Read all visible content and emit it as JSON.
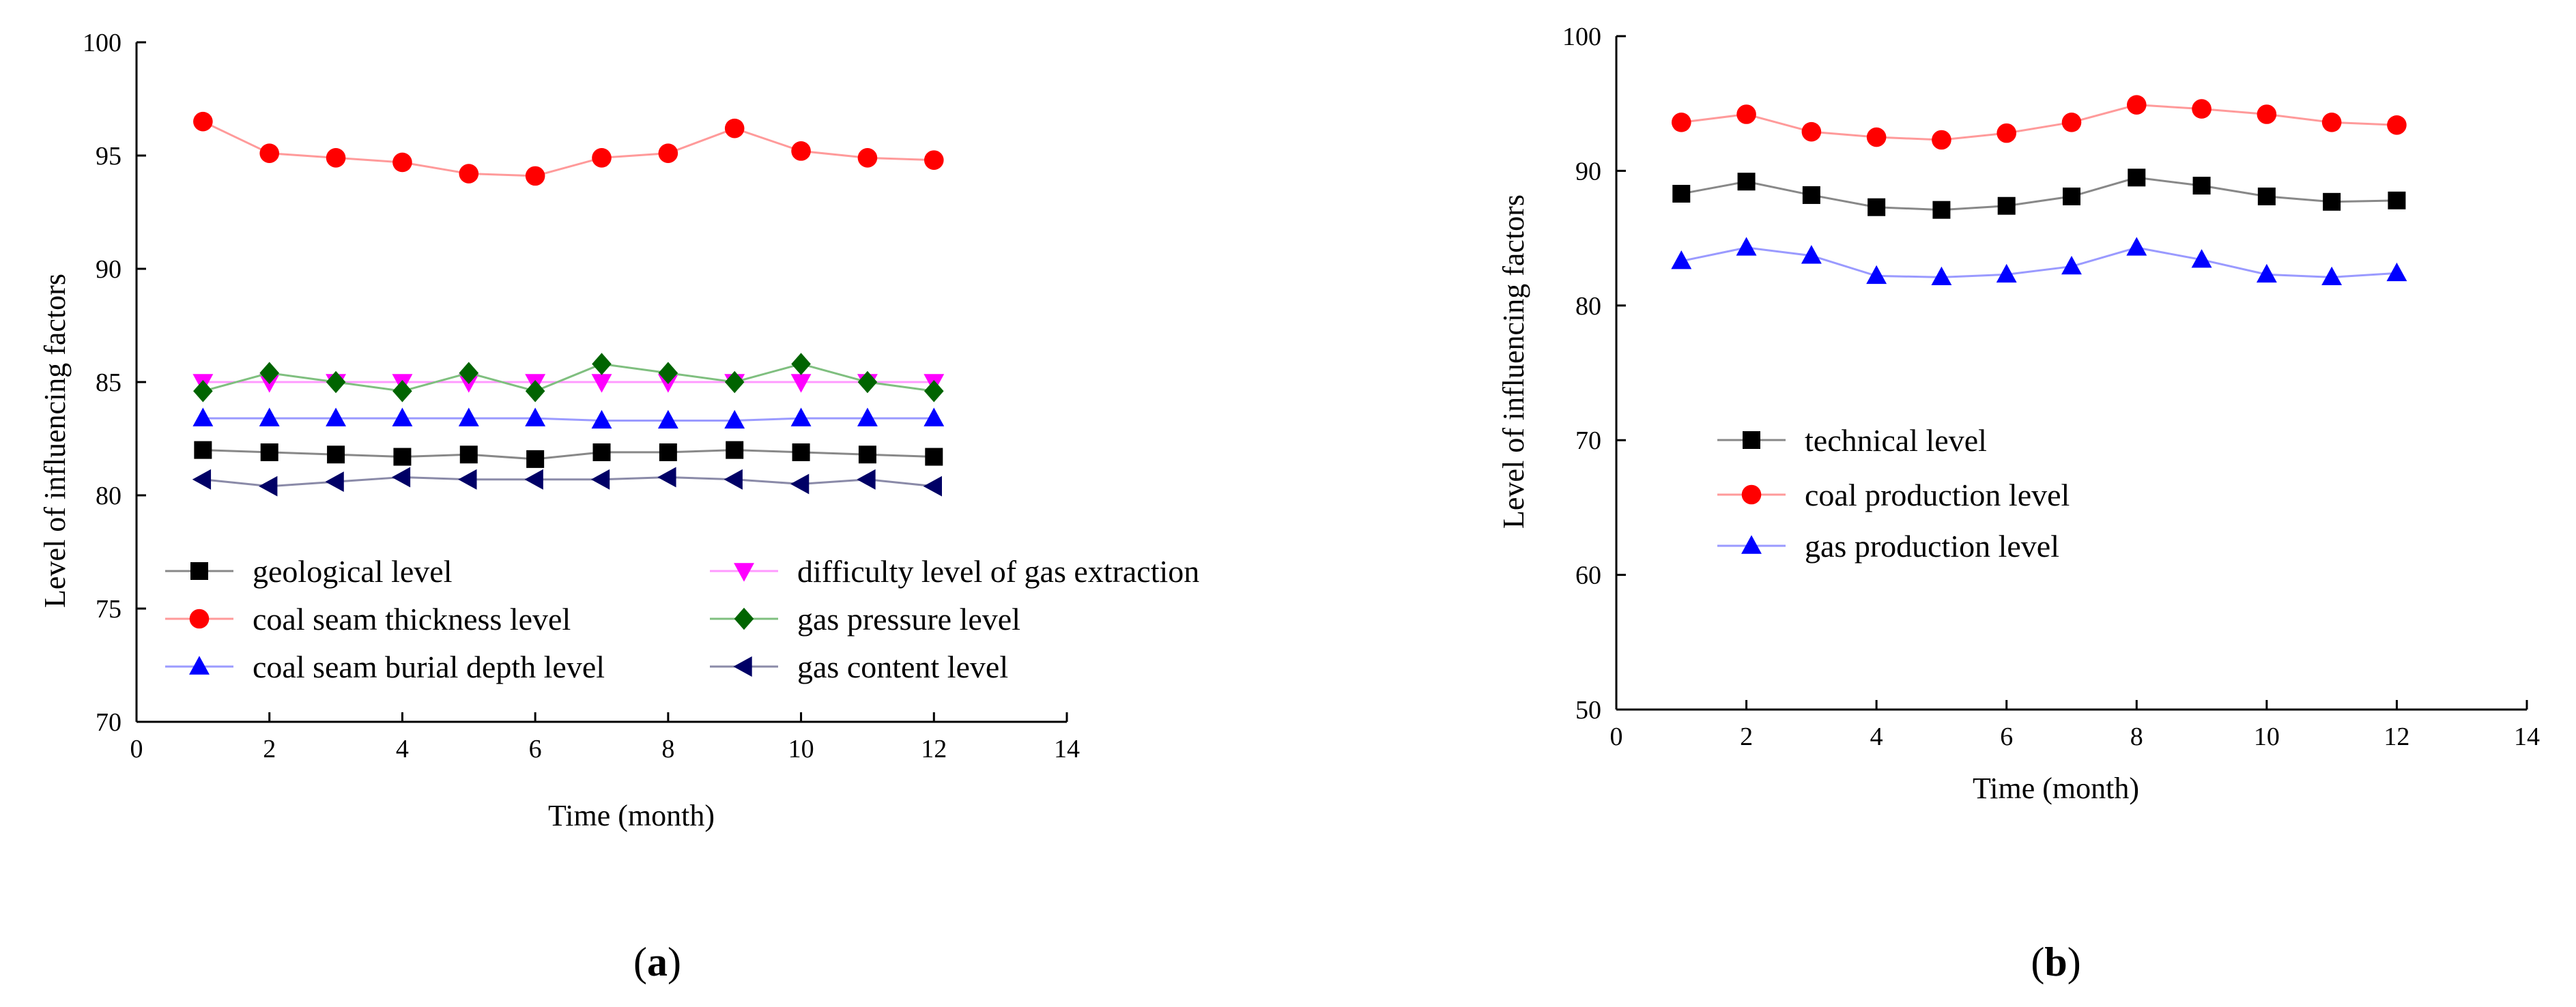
{
  "chart_data": [
    {
      "id": "a",
      "type": "line",
      "caption": "(a)",
      "caption_letter": "a",
      "xlabel": "Time (month)",
      "ylabel": "Level of influencing factors",
      "xlim": [
        0,
        14
      ],
      "ylim": [
        70,
        100
      ],
      "xticks": [
        0,
        2,
        4,
        6,
        8,
        10,
        12,
        14
      ],
      "yticks": [
        70,
        75,
        80,
        85,
        90,
        95,
        100
      ],
      "x": [
        1,
        2,
        3,
        4,
        5,
        6,
        7,
        8,
        9,
        10,
        11,
        12
      ],
      "legend_position": "bottom-inside, two columns",
      "series": [
        {
          "name": "geological level",
          "marker": "square",
          "marker_color": "#000000",
          "line_color": "#888888",
          "values": [
            82.0,
            81.9,
            81.8,
            81.7,
            81.8,
            81.6,
            81.9,
            81.9,
            82.0,
            81.9,
            81.8,
            81.7
          ]
        },
        {
          "name": "coal seam thickness level",
          "marker": "circle",
          "marker_color": "#ff0000",
          "line_color": "#ff9a9a",
          "values": [
            96.5,
            95.1,
            94.9,
            94.7,
            94.2,
            94.1,
            94.9,
            95.1,
            96.2,
            95.2,
            94.9,
            94.8
          ]
        },
        {
          "name": "coal seam burial depth level",
          "marker": "triangle-up",
          "marker_color": "#0000ff",
          "line_color": "#9a9aff",
          "values": [
            83.4,
            83.4,
            83.4,
            83.4,
            83.4,
            83.4,
            83.3,
            83.3,
            83.3,
            83.4,
            83.4,
            83.4
          ]
        },
        {
          "name": "difficulty level of gas extraction",
          "marker": "triangle-down",
          "marker_color": "#ff00ff",
          "line_color": "#ff9aff",
          "values": [
            85.0,
            85.0,
            85.0,
            85.0,
            85.0,
            85.0,
            85.0,
            85.0,
            85.0,
            85.0,
            85.0,
            85.0
          ]
        },
        {
          "name": "gas pressure level",
          "marker": "diamond",
          "marker_color": "#006400",
          "line_color": "#7fbf7f",
          "values": [
            84.6,
            85.4,
            85.0,
            84.6,
            85.4,
            84.6,
            85.8,
            85.4,
            85.0,
            85.8,
            85.0,
            84.6
          ]
        },
        {
          "name": "gas content level",
          "marker": "triangle-left",
          "marker_color": "#000066",
          "line_color": "#8a8aa8",
          "values": [
            80.7,
            80.4,
            80.6,
            80.8,
            80.7,
            80.7,
            80.7,
            80.8,
            80.7,
            80.5,
            80.7,
            80.4
          ]
        }
      ]
    },
    {
      "id": "b",
      "type": "line",
      "caption": "(b)",
      "caption_letter": "b",
      "xlabel": "Time (month)",
      "ylabel": "Level of influencing factors",
      "xlim": [
        0,
        14
      ],
      "ylim": [
        50,
        100
      ],
      "xticks": [
        0,
        2,
        4,
        6,
        8,
        10,
        12,
        14
      ],
      "yticks": [
        50,
        60,
        70,
        80,
        90,
        100
      ],
      "x": [
        1,
        2,
        3,
        4,
        5,
        6,
        7,
        8,
        9,
        10,
        11,
        12
      ],
      "legend_position": "center-left inside",
      "series": [
        {
          "name": "technical level",
          "marker": "square",
          "marker_color": "#000000",
          "line_color": "#888888",
          "values": [
            88.3,
            89.2,
            88.2,
            87.3,
            87.1,
            87.4,
            88.1,
            89.5,
            88.9,
            88.1,
            87.7,
            87.8
          ]
        },
        {
          "name": "coal production level",
          "marker": "circle",
          "marker_color": "#ff0000",
          "line_color": "#ff9a9a",
          "values": [
            93.6,
            94.2,
            92.9,
            92.5,
            92.3,
            92.8,
            93.6,
            94.9,
            94.6,
            94.2,
            93.6,
            93.4
          ]
        },
        {
          "name": "gas production level",
          "marker": "triangle-up",
          "marker_color": "#0000ff",
          "line_color": "#9a9aff",
          "values": [
            83.3,
            84.3,
            83.7,
            82.2,
            82.1,
            82.3,
            82.9,
            84.3,
            83.4,
            82.3,
            82.1,
            82.4
          ]
        }
      ]
    }
  ]
}
